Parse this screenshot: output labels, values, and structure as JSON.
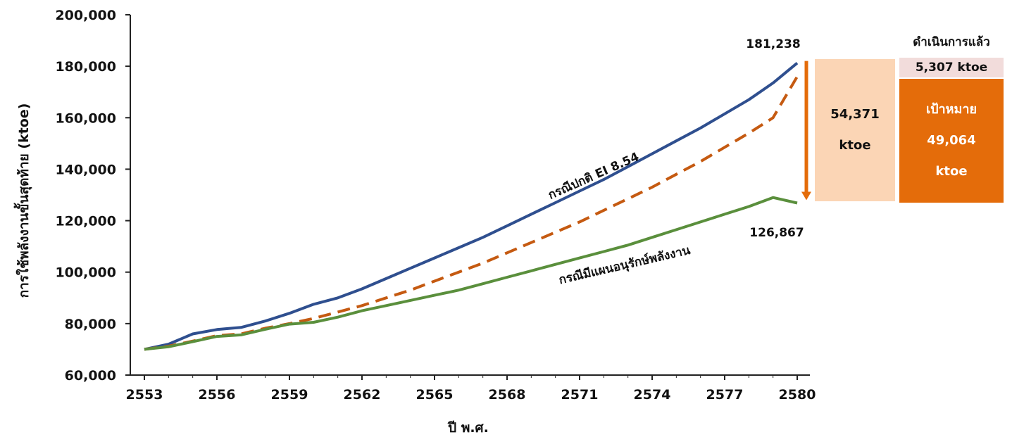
{
  "chart_data": {
    "type": "line",
    "xlabel": "ปี พ.ศ.",
    "ylabel": "การใช้พลังงานขั้นสุดท้าย (ktoe)",
    "xlim": [
      2553,
      2580
    ],
    "ylim": [
      60000,
      200000
    ],
    "x_ticks": [
      "2553",
      "2556",
      "2559",
      "2562",
      "2565",
      "2568",
      "2571",
      "2574",
      "2577",
      "2580"
    ],
    "y_ticks": [
      "60,000",
      "80,000",
      "100,000",
      "120,000",
      "140,000",
      "160,000",
      "180,000",
      "200,000"
    ],
    "series": [
      {
        "name": "กรณีปกติ EI 8.54",
        "color": "#2f4f8f",
        "style": "solid",
        "x": [
          2553,
          2554,
          2555,
          2556,
          2557,
          2558,
          2559,
          2560,
          2561,
          2562,
          2563,
          2564,
          2565,
          2566,
          2567,
          2568,
          2569,
          2570,
          2571,
          2572,
          2573,
          2574,
          2575,
          2576,
          2577,
          2578,
          2579,
          2580
        ],
        "y": [
          70000,
          72000,
          76000,
          77700,
          78500,
          81000,
          84000,
          87500,
          90000,
          93500,
          97500,
          101500,
          105500,
          109500,
          113500,
          118000,
          122500,
          127000,
          131500,
          136000,
          141000,
          146000,
          151000,
          156000,
          161500,
          167000,
          173500,
          181238
        ]
      },
      {
        "name": "",
        "color": "#c55a11",
        "style": "dashed",
        "x": [
          2553,
          2554,
          2555,
          2556,
          2557,
          2558,
          2559,
          2560,
          2561,
          2562,
          2563,
          2564,
          2565,
          2566,
          2567,
          2568,
          2569,
          2570,
          2571,
          2572,
          2573,
          2574,
          2575,
          2576,
          2577,
          2578,
          2579,
          2580
        ],
        "y": [
          70000,
          71200,
          73200,
          75300,
          76000,
          78200,
          80000,
          82000,
          84500,
          87000,
          90000,
          93000,
          96500,
          100000,
          103500,
          107500,
          111500,
          115500,
          119500,
          124000,
          128500,
          133000,
          138000,
          143000,
          148500,
          154000,
          160000,
          176000
        ]
      },
      {
        "name": "กรณีมีแผนอนุรักษ์พลังงาน",
        "color": "#5a8f3c",
        "style": "solid",
        "x": [
          2553,
          2554,
          2555,
          2556,
          2557,
          2558,
          2559,
          2560,
          2561,
          2562,
          2563,
          2564,
          2565,
          2566,
          2567,
          2568,
          2569,
          2570,
          2571,
          2572,
          2573,
          2574,
          2575,
          2576,
          2577,
          2578,
          2579,
          2580
        ],
        "y": [
          70000,
          71000,
          73000,
          75000,
          75600,
          77800,
          79800,
          80500,
          82500,
          85000,
          87000,
          89000,
          91000,
          93000,
          95500,
          98000,
          100500,
          103000,
          105500,
          108000,
          110500,
          113500,
          116500,
          119500,
          122500,
          125500,
          129000,
          126867
        ]
      }
    ],
    "annotations": {
      "top_value": "181,238",
      "bottom_value": "126,867",
      "bau_label": "กรณีปกติ EI 8.54",
      "plan_label": "กรณีมีแผนอนุรักษ์พลังงาน"
    }
  },
  "boxes": {
    "saving_value": "54,371",
    "saving_unit": "ktoe",
    "done_title": "ดำเนินการแล้ว",
    "done_value": "5,307 ktoe",
    "target_label": "เป้าหมาย",
    "target_value": "49,064",
    "target_unit": "ktoe"
  },
  "colors": {
    "arrow": "#e46c0a",
    "axis": "#222222"
  }
}
